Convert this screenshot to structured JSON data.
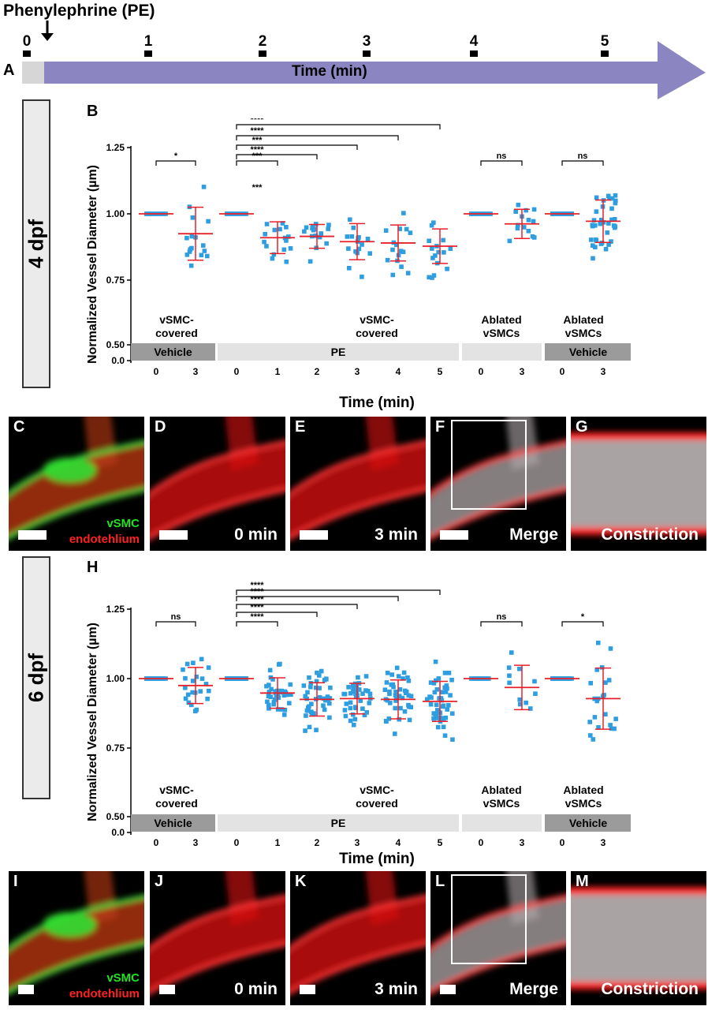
{
  "panel_a": {
    "letter": "A",
    "drug_label": "Phenylephrine (PE)",
    "axis_label": "Time (min)",
    "ticks": [
      "0",
      "1",
      "2",
      "3",
      "4",
      "5"
    ],
    "arrow_color": "#8b85c1"
  },
  "panel_b": {
    "letter": "B",
    "side_label": "4 dpf",
    "ylabel": "Normalized Vessel Diameter (µm)",
    "xlabel": "Time (min)",
    "yticks": [
      "1.25",
      "1.00",
      "0.75",
      "0.50",
      "0.0"
    ],
    "group_labels": [
      [
        "vSMC-",
        "covered"
      ],
      [
        "vSMC-",
        "covered"
      ],
      [
        "Ablated",
        "vSMCs"
      ],
      [
        "Ablated",
        "vSMCs"
      ]
    ],
    "treatment_labels": [
      "Vehicle",
      "PE",
      "",
      "Vehicle"
    ],
    "xticks": [
      "0",
      "3",
      "0",
      "1",
      "2",
      "3",
      "4",
      "5",
      "0",
      "3",
      "0",
      "3"
    ],
    "sig_pairs": [
      "*",
      "***",
      "****",
      "***",
      "****",
      "****",
      "ns",
      "ns"
    ],
    "extra_mark": "***"
  },
  "panel_h": {
    "letter": "H",
    "side_label": "6 dpf",
    "ylabel": "Normalized Vessel Diameter (µm)",
    "xlabel": "Time (min)",
    "yticks": [
      "1.25",
      "1.00",
      "0.75",
      "0.50",
      "0.0"
    ],
    "group_labels": [
      [
        "vSMC-",
        "covered"
      ],
      [
        "vSMC-",
        "covered"
      ],
      [
        "Ablated",
        "vSMCs"
      ],
      [
        "Ablated",
        "vSMCs"
      ]
    ],
    "treatment_labels": [
      "Vehicle",
      "PE",
      "",
      "Vehicle"
    ],
    "xticks": [
      "0",
      "3",
      "0",
      "1",
      "2",
      "3",
      "4",
      "5",
      "0",
      "3",
      "0",
      "3"
    ],
    "sig_pairs": [
      "ns",
      "****",
      "****",
      "****",
      "****",
      "****",
      "ns",
      "*"
    ]
  },
  "chart_data": [
    {
      "type": "scatter",
      "ylabel": "Normalized Vessel Diameter (µm)",
      "xlabel": "Time (min)",
      "ylim": [
        0,
        1.25
      ],
      "categories": [
        "Vehicle 0",
        "Vehicle 3",
        "PE 0",
        "PE 1",
        "PE 2",
        "PE 3",
        "PE 4",
        "PE 5",
        "Ablated 0",
        "Ablated 3",
        "Ablated Vehicle 0",
        "Ablated Vehicle 3"
      ],
      "mean": [
        1.0,
        0.925,
        1.0,
        0.91,
        0.915,
        0.895,
        0.89,
        0.878,
        1.0,
        0.962,
        1.0,
        0.972
      ],
      "sd": [
        0.0,
        0.1,
        0.0,
        0.06,
        0.045,
        0.068,
        0.068,
        0.065,
        0.0,
        0.055,
        0.0,
        0.08
      ],
      "n": [
        16,
        16,
        16,
        16,
        16,
        16,
        16,
        16,
        14,
        14,
        36,
        36
      ],
      "series_color": "#2e9ee0",
      "error_color": "#e8202a"
    },
    {
      "type": "scatter",
      "ylabel": "Normalized Vessel Diameter (µm)",
      "xlabel": "Time (min)",
      "ylim": [
        0,
        1.25
      ],
      "categories": [
        "Vehicle 0",
        "Vehicle 3",
        "PE 0",
        "PE 1",
        "PE 2",
        "PE 3",
        "PE 4",
        "PE 5",
        "Ablated 0",
        "Ablated 3",
        "Ablated Vehicle 0",
        "Ablated Vehicle 3"
      ],
      "mean": [
        1.0,
        0.975,
        1.0,
        0.948,
        0.925,
        0.928,
        0.925,
        0.918,
        1.0,
        0.968,
        1.0,
        0.928
      ],
      "sd": [
        0.0,
        0.065,
        0.0,
        0.055,
        0.06,
        0.055,
        0.07,
        0.072,
        0.0,
        0.08,
        0.0,
        0.11
      ],
      "n": [
        22,
        22,
        36,
        36,
        40,
        40,
        44,
        44,
        11,
        11,
        22,
        22
      ],
      "series_color": "#2e9ee0",
      "error_color": "#e8202a"
    }
  ],
  "images_row1": [
    {
      "letter": "C",
      "caption": "",
      "legend_top": "vSMC",
      "legend_bottom": "endotehlium",
      "kind": "green-red"
    },
    {
      "letter": "D",
      "caption": "0 min",
      "kind": "red"
    },
    {
      "letter": "E",
      "caption": "3 min",
      "kind": "red"
    },
    {
      "letter": "F",
      "caption": "Merge",
      "kind": "merge"
    },
    {
      "letter": "G",
      "caption": "Constriction",
      "kind": "zoom"
    }
  ],
  "images_row2": [
    {
      "letter": "I",
      "caption": "",
      "legend_top": "vSMC",
      "legend_bottom": "endotehlium",
      "kind": "green-red"
    },
    {
      "letter": "J",
      "caption": "0 min",
      "kind": "red"
    },
    {
      "letter": "K",
      "caption": "3 min",
      "kind": "red"
    },
    {
      "letter": "L",
      "caption": "Merge",
      "kind": "merge"
    },
    {
      "letter": "M",
      "caption": "Constriction",
      "kind": "zoom"
    }
  ]
}
